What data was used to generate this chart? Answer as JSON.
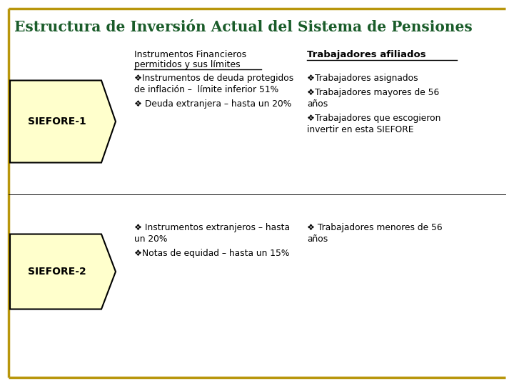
{
  "title": "Estructura de Inversión Actual del Sistema de Pensiones",
  "subtitle_line1": "Instrumentos Financieros",
  "subtitle_line2": "permitidos y sus límites",
  "col2_header": "Trabajadores afiliados",
  "bg_color": "#ffffff",
  "title_color": "#1a5c2a",
  "border_color": "#b8960c",
  "shape_fill": "#ffffcc",
  "shape_edge": "#000000",
  "text_color": "#000000",
  "header_color": "#000000",
  "siefore1_label": "SIEFORE-1",
  "siefore2_label": "SIEFORE-2",
  "siefore1_col1_line1": "❖Instrumentos de deuda protegidos",
  "siefore1_col1_line2": "de inflación –  límite inferior 51%",
  "siefore1_col1_line3": "❖ Deuda extranjera – hasta un 20%",
  "siefore1_col2_line1": "❖Trabajadores asignados",
  "siefore1_col2_line2": "❖Trabajadores mayores de 56",
  "siefore1_col2_line3": "años",
  "siefore1_col2_line4": "❖Trabajadores que escogieron",
  "siefore1_col2_line5": "invertir en esta SIEFORE",
  "siefore2_col1_line1": "❖ Instrumentos extranjeros – hasta",
  "siefore2_col1_line2": "un 20%",
  "siefore2_col1_line3": "❖Notas de equidad – hasta un 15%",
  "siefore2_col2_line1": "❖ Trabajadores menores de 56",
  "siefore2_col2_line2": "años"
}
